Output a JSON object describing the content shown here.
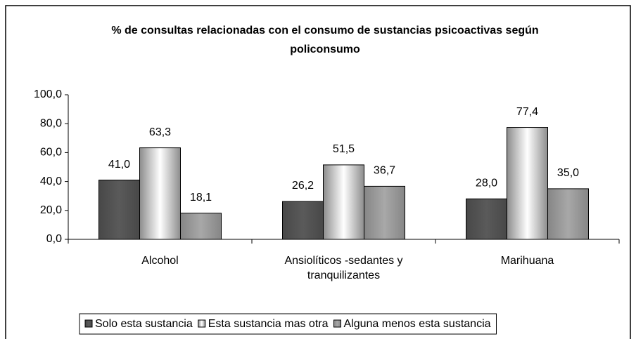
{
  "chart_data": {
    "type": "bar",
    "title": "% de consultas relacionadas con el consumo de sustancias psicoactivas según policonsumo",
    "categories": [
      "Alcohol",
      "Ansiolíticos -sedantes y tranquilizantes",
      "Marihuana"
    ],
    "series": [
      {
        "name": "Solo esta sustancia",
        "color": "#5a5a5a",
        "values": [
          41.0,
          26.2,
          28.0
        ],
        "value_labels": [
          "41,0",
          "26,2",
          "28,0"
        ]
      },
      {
        "name": "Esta sustancia mas otra",
        "color": "#ffffff",
        "values": [
          63.3,
          51.5,
          77.4
        ],
        "value_labels": [
          "63,3",
          "51,5",
          "77,4"
        ]
      },
      {
        "name": "Alguna menos esta sustancia",
        "color": "#a8a8a8",
        "values": [
          18.1,
          36.7,
          35.0
        ],
        "value_labels": [
          "18,1",
          "36,7",
          "35,0"
        ]
      }
    ],
    "ylim": [
      0,
      100
    ],
    "yticks": [
      {
        "value": 0,
        "label": "0,0"
      },
      {
        "value": 20,
        "label": "20,0"
      },
      {
        "value": 40,
        "label": "40,0"
      },
      {
        "value": 60,
        "label": "60,0"
      },
      {
        "value": 80,
        "label": "80,0"
      },
      {
        "value": 100,
        "label": "100,0"
      }
    ],
    "grid": false,
    "legend": "bottom"
  }
}
